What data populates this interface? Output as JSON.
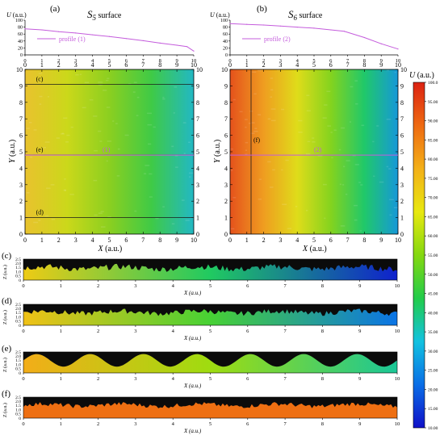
{
  "colors": {
    "colormap": [
      "#1010c8",
      "#0a6ee6",
      "#12c2e0",
      "#22cc4a",
      "#84d810",
      "#e8e810",
      "#f3b018",
      "#ee6a12",
      "#dc2212"
    ],
    "profile_line": "#c45cdc",
    "surface_S5": [
      "#e9c22e",
      "#cbd81a",
      "#8bcf20",
      "#3fca46",
      "#22b8c4"
    ],
    "surface_S6": [
      "#e5521c",
      "#ef9d20",
      "#dfdc1a",
      "#84d31e",
      "#20c86a",
      "#1698d8"
    ]
  },
  "chart_data": [
    {
      "id": "profile_a",
      "type": "line",
      "panel_label": "(a)",
      "title": "S5 surface",
      "title_main": "S",
      "title_sub": "5",
      "title_rest": " surface",
      "ylabel": "U (a.u.)",
      "ylabel_sym": "U",
      "ylabel_unit": " (a.u.)",
      "xlim": [
        0,
        10
      ],
      "ylim": [
        0,
        100
      ],
      "x_ticks": [
        "0",
        "1",
        "2",
        "3",
        "4",
        "5",
        "6",
        "7",
        "8",
        "9",
        "10"
      ],
      "y_ticks": [
        "0",
        "20",
        "40",
        "60",
        "80",
        "100"
      ],
      "legend": "profile (1)",
      "series": [
        {
          "name": "profile (1)",
          "x": [
            0,
            1,
            2,
            3,
            4,
            5,
            6,
            7,
            8,
            9,
            9.6,
            10
          ],
          "y": [
            75,
            72,
            67,
            63,
            58,
            53,
            47,
            41,
            34,
            28,
            24,
            11
          ]
        }
      ]
    },
    {
      "id": "profile_b",
      "type": "line",
      "panel_label": "(b)",
      "title": "S6 surface",
      "title_main": "S",
      "title_sub": "6",
      "title_rest": " surface",
      "ylabel": "U (a.u.)",
      "ylabel_sym": "U",
      "ylabel_unit": " (a.u.)",
      "xlim": [
        0,
        10
      ],
      "ylim": [
        0,
        100
      ],
      "x_ticks": [
        "0",
        "1",
        "2",
        "3",
        "4",
        "5",
        "6",
        "7",
        "8",
        "9",
        "10"
      ],
      "y_ticks": [
        "0",
        "20",
        "40",
        "60",
        "80",
        "100"
      ],
      "legend": "profile (2)",
      "series": [
        {
          "name": "profile (2)",
          "x": [
            0,
            1,
            2,
            3,
            4,
            5,
            6,
            6.8,
            8,
            9,
            10
          ],
          "y": [
            90,
            88,
            86,
            83,
            80,
            77,
            72,
            68,
            50,
            32,
            17
          ]
        }
      ]
    },
    {
      "id": "map_a",
      "type": "heatmap",
      "xlabel": "X (a.u.)",
      "ylabel": "Y (a.u.)",
      "xlabel_sym": "X",
      "ylabel_sym": "Y",
      "unit": " (a.u.)",
      "xlim": [
        0,
        10
      ],
      "ylim": [
        0,
        10
      ],
      "x_ticks": [
        "0",
        "1",
        "2",
        "3",
        "4",
        "5",
        "6",
        "7",
        "8",
        "9",
        "10"
      ],
      "y_ticks": [
        "0",
        "1",
        "2",
        "3",
        "4",
        "5",
        "6",
        "7",
        "8",
        "9",
        "10"
      ],
      "hlines": [
        {
          "y": 9.1,
          "label": "(c)"
        },
        {
          "y": 4.8,
          "label": "(e)"
        },
        {
          "y": 1.0,
          "label": "(d)"
        }
      ],
      "profile_line": {
        "y": 4.8,
        "label": "(1)",
        "x_label": 4.6
      }
    },
    {
      "id": "map_b",
      "type": "heatmap",
      "xlabel": "X (a.u.)",
      "ylabel": "Y (a.u.)",
      "xlabel_sym": "X",
      "ylabel_sym": "Y",
      "unit": " (a.u.)",
      "xlim": [
        0,
        10
      ],
      "ylim": [
        0,
        10
      ],
      "x_ticks": [
        "0",
        "1",
        "2",
        "3",
        "4",
        "5",
        "6",
        "7",
        "8",
        "9",
        "10"
      ],
      "y_ticks": [
        "0",
        "1",
        "2",
        "3",
        "4",
        "5",
        "6",
        "7",
        "8",
        "9",
        "10"
      ],
      "vlines": [
        {
          "x": 1.25,
          "label": "(f)"
        }
      ],
      "profile_line": {
        "y": 4.8,
        "label": "(2)",
        "x_label": 5.0
      }
    },
    {
      "id": "colorbar",
      "type": "heatmap",
      "label": "U (a.u.)",
      "label_sym": "U",
      "label_unit": " (a.u.)",
      "range": [
        10,
        100
      ],
      "ticks": [
        "10.00",
        "15.00",
        "20.00",
        "25.00",
        "30.00",
        "35.00",
        "40.00",
        "45.00",
        "50.00",
        "55.00",
        "60.00",
        "65.00",
        "70.00",
        "75.00",
        "80.00",
        "85.00",
        "90.00",
        "95.00",
        "100.0"
      ]
    },
    {
      "id": "section_c",
      "type": "area",
      "panel_label": "(c)",
      "xlabel": "X (a.u.)",
      "ylabel": "Z (a.u.)",
      "xlim": [
        0,
        10
      ],
      "ylim": [
        0,
        2.5
      ],
      "x_ticks": [
        "0",
        "1",
        "2",
        "3",
        "4",
        "5",
        "6",
        "7",
        "8",
        "9",
        "10"
      ],
      "y_ticks": [
        "0",
        "0.5",
        "1.0",
        "1.5",
        "2.0",
        "2.5"
      ],
      "color_range": [
        10,
        100
      ],
      "u": [
        72,
        12
      ],
      "surface": "rough",
      "height_mean": 1.45,
      "height_amp": 0.35
    },
    {
      "id": "section_d",
      "type": "area",
      "panel_label": "(d)",
      "xlabel": "X (a.u.)",
      "ylabel": "Z (a.u.)",
      "xlim": [
        0,
        10
      ],
      "ylim": [
        0,
        2.5
      ],
      "x_ticks": [
        "0",
        "1",
        "2",
        "3",
        "4",
        "5",
        "6",
        "7",
        "8",
        "9",
        "10"
      ],
      "y_ticks": [
        "0",
        "0.5",
        "1.0",
        "1.5",
        "2.0",
        "2.5"
      ],
      "color_range": [
        10,
        100
      ],
      "u": [
        74,
        22
      ],
      "surface": "rough",
      "height_mean": 1.55,
      "height_amp": 0.3
    },
    {
      "id": "section_e",
      "type": "area",
      "panel_label": "(e)",
      "xlabel": "X (a.u.)",
      "ylabel": "Z (a.u.)",
      "xlim": [
        0,
        10
      ],
      "ylim": [
        0,
        2.5
      ],
      "x_ticks": [
        "0",
        "1",
        "2",
        "3",
        "4",
        "5",
        "6",
        "7",
        "8",
        "9",
        "10"
      ],
      "y_ticks": [
        "0",
        "0.5",
        "1.0",
        "1.5",
        "2.0",
        "2.5"
      ],
      "color_range": [
        10,
        100
      ],
      "u": [
        78,
        38
      ],
      "surface": "sine",
      "height_mean": 1.5,
      "height_amp": 0.75,
      "periods": 7
    },
    {
      "id": "section_f",
      "type": "area",
      "panel_label": "(f)",
      "xlabel": "X (a.u.)",
      "ylabel": "Z (a.u.)",
      "xlim": [
        0,
        10
      ],
      "ylim": [
        0,
        2.5
      ],
      "x_ticks": [
        "0",
        "1",
        "2",
        "3",
        "4",
        "5",
        "6",
        "7",
        "8",
        "9",
        "10"
      ],
      "y_ticks": [
        "0",
        "0.5",
        "1.0",
        "1.5",
        "2.0",
        "2.5"
      ],
      "color_range": [
        10,
        100
      ],
      "u": [
        88,
        88
      ],
      "surface": "rough",
      "height_mean": 1.55,
      "height_amp": 0.25
    }
  ]
}
